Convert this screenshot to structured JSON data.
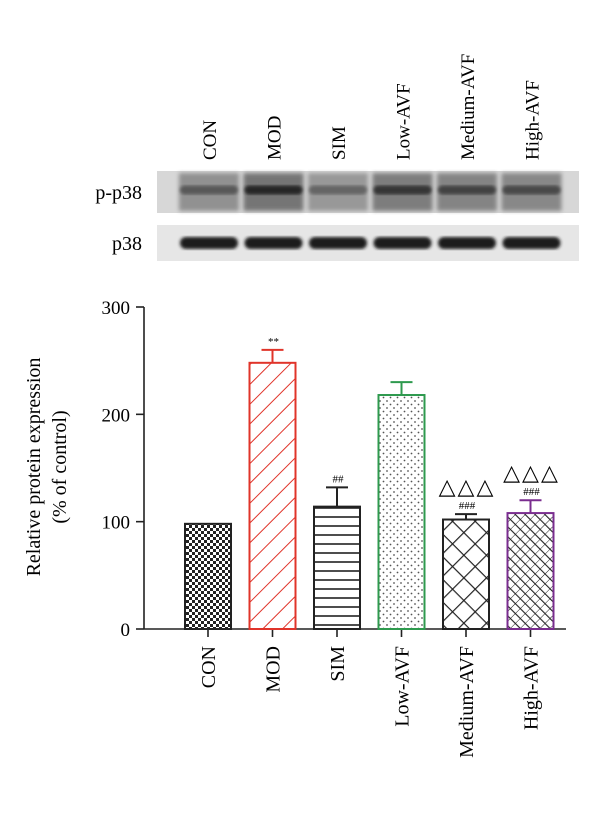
{
  "western_blot": {
    "lanes": [
      "CON",
      "MOD",
      "SIM",
      "Low-AVF",
      "Medium-AVF",
      "High-AVF"
    ],
    "rows": [
      {
        "label": "p-p38",
        "intensity": [
          0.62,
          0.9,
          0.55,
          0.82,
          0.74,
          0.7
        ]
      },
      {
        "label": "p38",
        "intensity": [
          0.95,
          0.95,
          0.95,
          0.95,
          0.95,
          0.95
        ]
      }
    ]
  },
  "chart_data": {
    "type": "bar",
    "title": "",
    "xlabel": "",
    "ylabel_lines": [
      "Relative protein expression",
      "(% of control)"
    ],
    "ylim": [
      0,
      300
    ],
    "yticks": [
      0,
      100,
      200,
      300
    ],
    "categories": [
      "CON",
      "MOD",
      "SIM",
      "Low-AVF",
      "Medium-AVF",
      "High-AVF"
    ],
    "values": [
      98,
      248,
      114,
      218,
      102,
      108
    ],
    "errors": [
      0,
      12,
      18,
      12,
      5,
      12
    ],
    "bar_colors": [
      "#222222",
      "#e0342a",
      "#222222",
      "#2e9a4e",
      "#222222",
      "#7a2d8f"
    ],
    "patterns": [
      "checker",
      "diagonal",
      "horizontal",
      "dots",
      "crosshatch",
      "diagonal-dense"
    ],
    "annotations": [
      "",
      "**",
      "##",
      "",
      "###",
      "###"
    ],
    "triangles": [
      "",
      "",
      "",
      "",
      "△△△",
      "△△△"
    ],
    "grid": false,
    "legend": "none"
  }
}
